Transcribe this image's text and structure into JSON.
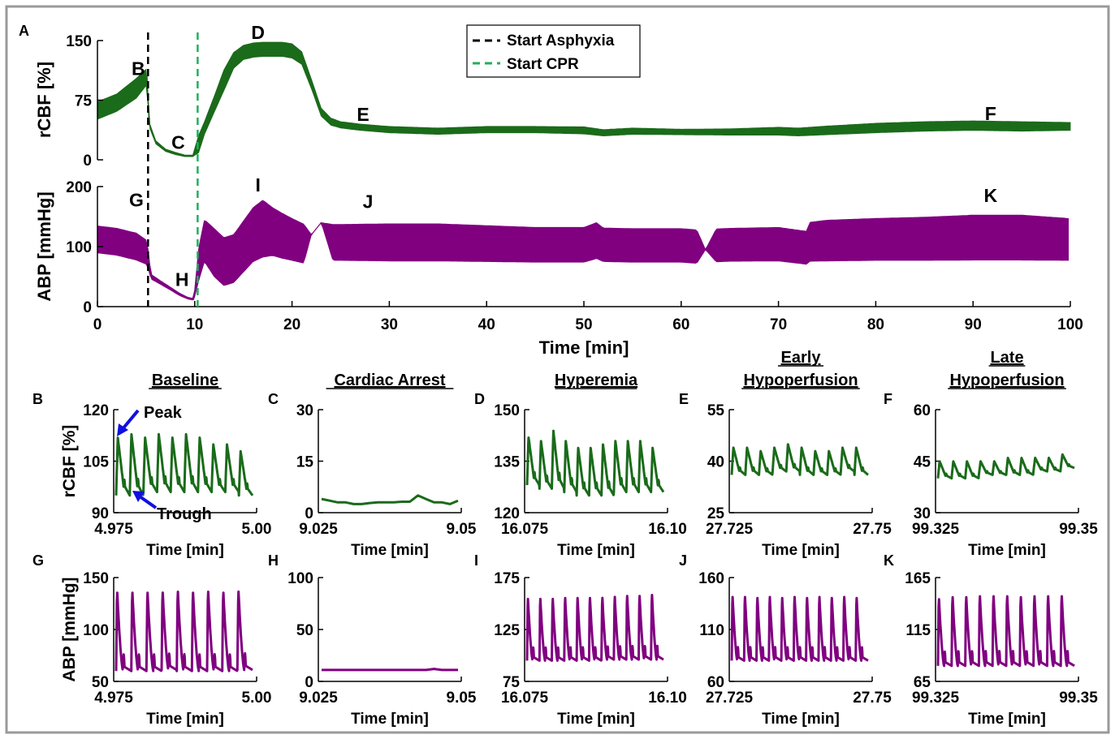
{
  "figure": {
    "panel_letters": [
      "A",
      "B",
      "C",
      "D",
      "E",
      "F",
      "G",
      "H",
      "I",
      "J",
      "K"
    ],
    "colors": {
      "rcbf": "#1a6b1a",
      "abp": "#800080",
      "asphyxia": "#000000",
      "cpr": "#1db15a",
      "arrow": "#1010e0",
      "border": "#9a9a9a"
    }
  },
  "chart_data": [
    {
      "id": "A-rcbf",
      "type": "line",
      "ylabel": "rCBF [%]",
      "yticks": [
        0,
        75,
        150
      ],
      "ylim": [
        0,
        150
      ],
      "xlim": [
        0,
        100
      ],
      "series": [
        {
          "x": [
            0,
            2,
            4,
            5.1,
            5.3,
            6,
            7,
            8,
            9,
            9.8,
            10.4,
            11,
            12,
            13,
            14,
            15,
            16,
            17,
            18,
            19,
            20,
            21,
            22,
            23,
            24,
            25,
            27,
            30,
            35,
            40,
            45,
            50,
            52,
            55,
            60,
            65,
            70,
            72,
            75,
            80,
            85,
            90,
            95,
            100
          ],
          "values": [
            62,
            72,
            90,
            105,
            45,
            22,
            12,
            8,
            5,
            5,
            20,
            40,
            70,
            100,
            125,
            135,
            138,
            139,
            139,
            139,
            137,
            128,
            95,
            60,
            48,
            44,
            41,
            38,
            36,
            38,
            38,
            37,
            34,
            36,
            35,
            35,
            36,
            35,
            37,
            40,
            42,
            43,
            42,
            42
          ],
          "band": [
            22,
            22,
            25,
            20,
            6,
            4,
            3,
            3,
            2,
            2,
            22,
            16,
            20,
            26,
            20,
            18,
            18,
            18,
            18,
            18,
            18,
            16,
            12,
            10,
            9,
            8,
            8,
            8,
            8,
            8,
            8,
            9,
            8,
            8,
            7,
            8,
            10,
            10,
            11,
            12,
            12,
            12,
            12,
            10
          ]
        }
      ],
      "annotations": [
        {
          "text": "B",
          "x": 4.2,
          "y": 115
        },
        {
          "text": "C",
          "x": 8.3,
          "y": 22
        },
        {
          "text": "D",
          "x": 16.5,
          "y": 160
        },
        {
          "text": "E",
          "x": 27.3,
          "y": 57
        },
        {
          "text": "F",
          "x": 91.8,
          "y": 58
        }
      ]
    },
    {
      "id": "A-abp",
      "type": "line",
      "ylabel": "ABP [mmHg]",
      "xlabel": "Time [min]",
      "yticks": [
        0,
        100,
        200
      ],
      "ylim": [
        0,
        200
      ],
      "xlim": [
        0,
        100
      ],
      "xticks": [
        0,
        10,
        20,
        30,
        40,
        50,
        60,
        70,
        80,
        90,
        100
      ],
      "series": [
        {
          "x": [
            0,
            2,
            4,
            5.1,
            5.5,
            6.5,
            7.5,
            8.5,
            9.3,
            9.9,
            10.4,
            11,
            12,
            13,
            14,
            15,
            16,
            17,
            18,
            19,
            20,
            21.2,
            22,
            23,
            24.2,
            25,
            30,
            35,
            40,
            45,
            50,
            51.3,
            52,
            55,
            60,
            61.6,
            62.5,
            63.6,
            65,
            70,
            72.9,
            73.2,
            75,
            80,
            85,
            90,
            95,
            99.8
          ],
          "values": [
            112,
            108,
            100,
            90,
            50,
            40,
            30,
            20,
            14,
            12,
            70,
            110,
            90,
            75,
            80,
            100,
            120,
            130,
            125,
            118,
            112,
            105,
            120,
            140,
            107,
            107,
            107,
            107,
            105,
            103,
            103,
            110,
            103,
            102,
            102,
            100,
            95,
            102,
            103,
            104,
            98,
            108,
            110,
            112,
            113,
            115,
            115,
            112
          ],
          "band": [
            45,
            45,
            45,
            40,
            8,
            6,
            5,
            4,
            3,
            3,
            55,
            70,
            80,
            80,
            80,
            85,
            90,
            95,
            80,
            75,
            70,
            65,
            0,
            0,
            60,
            60,
            62,
            62,
            60,
            58,
            58,
            60,
            56,
            56,
            56,
            56,
            0,
            55,
            55,
            56,
            55,
            65,
            68,
            70,
            72,
            75,
            75,
            70
          ]
        }
      ],
      "annotations": [
        {
          "text": "G",
          "x": 4.0,
          "y": 178
        },
        {
          "text": "H",
          "x": 8.7,
          "y": 45
        },
        {
          "text": "I",
          "x": 16.5,
          "y": 203
        },
        {
          "text": "J",
          "x": 27.8,
          "y": 175
        },
        {
          "text": "K",
          "x": 91.8,
          "y": 185
        }
      ]
    },
    {
      "id": "A-events",
      "type": "line",
      "lines": [
        {
          "name": "Start Asphyxia",
          "x": 5.2,
          "style": "dashed",
          "color": "#000000"
        },
        {
          "name": "Start CPR",
          "x": 10.3,
          "style": "dashed",
          "color": "#1db15a"
        }
      ],
      "legend": "top-center"
    },
    {
      "id": "B",
      "type": "line",
      "title": "Baseline",
      "ylabel": "rCBF [%]",
      "xlabel": "Time [min]",
      "xtick_labels": [
        "4.975",
        "5.00"
      ],
      "yticks": [
        90,
        105,
        120
      ],
      "ylim": [
        90,
        120
      ],
      "beats": 10,
      "peaks": [
        112,
        113,
        112,
        113,
        112,
        113,
        112,
        110,
        110,
        108
      ],
      "troughs": [
        95,
        95,
        96,
        96,
        96,
        96,
        96,
        96,
        96,
        95
      ],
      "shape": "cbf",
      "series_color": "rcbf",
      "annotations": [
        {
          "text": "Peak"
        },
        {
          "text": "Trough"
        }
      ]
    },
    {
      "id": "C",
      "type": "line",
      "title": "Cardiac Arrest",
      "xlabel": "Time [min]",
      "xtick_labels": [
        "9.025",
        "9.05"
      ],
      "yticks": [
        0,
        15,
        30
      ],
      "ylim": [
        0,
        30
      ],
      "flat": [
        4,
        3.5,
        3,
        3,
        2.5,
        2.5,
        2.8,
        3,
        3,
        3,
        3.2,
        3.2,
        5,
        4,
        3,
        3,
        2.5,
        3.5
      ],
      "series_color": "rcbf"
    },
    {
      "id": "D",
      "type": "line",
      "title": "Hyperemia",
      "xlabel": "Time [min]",
      "xtick_labels": [
        "16.075",
        "16.10"
      ],
      "yticks": [
        120,
        135,
        150
      ],
      "ylim": [
        120,
        150
      ],
      "beats": 11,
      "peaks": [
        142,
        141,
        144,
        141,
        139,
        139,
        140,
        141,
        141,
        141,
        139
      ],
      "troughs": [
        128,
        127,
        127,
        126,
        125,
        125,
        125,
        126,
        126,
        126,
        126
      ],
      "shape": "cbf",
      "series_color": "rcbf"
    },
    {
      "id": "E",
      "type": "line",
      "title": "Early Hypoperfusion",
      "xlabel": "Time [min]",
      "xtick_labels": [
        "27.725",
        "27.75"
      ],
      "yticks": [
        25,
        40,
        55
      ],
      "ylim": [
        25,
        55
      ],
      "beats": 10,
      "peaks": [
        44,
        44,
        43,
        44,
        45,
        44,
        43,
        43,
        44,
        44
      ],
      "troughs": [
        36,
        36,
        36,
        37,
        37,
        36,
        36,
        36,
        37,
        36
      ],
      "shape": "cbf",
      "series_color": "rcbf"
    },
    {
      "id": "F",
      "type": "line",
      "title": "Late Hypoperfusion",
      "xlabel": "Time [min]",
      "xtick_labels": [
        "99.325",
        "99.35"
      ],
      "yticks": [
        30,
        45,
        60
      ],
      "ylim": [
        30,
        60
      ],
      "beats": 10,
      "peaks": [
        45,
        45,
        45,
        45,
        45,
        46,
        46,
        46,
        46,
        47
      ],
      "troughs": [
        40,
        40,
        40,
        41,
        41,
        41,
        41,
        42,
        42,
        43
      ],
      "shape": "cbf",
      "series_color": "rcbf"
    },
    {
      "id": "G",
      "type": "line",
      "ylabel": "ABP [mmHg]",
      "xlabel": "Time [min]",
      "xtick_labels": [
        "4.975",
        "5.00"
      ],
      "yticks": [
        50,
        100,
        150
      ],
      "ylim": [
        50,
        150
      ],
      "beats": 9,
      "peaks": [
        140,
        140,
        140,
        140,
        141,
        140,
        141,
        140,
        141
      ],
      "troughs": [
        60,
        60,
        60,
        61,
        60,
        60,
        60,
        60,
        61
      ],
      "shape": "abp",
      "series_color": "abp"
    },
    {
      "id": "H",
      "type": "line",
      "xlabel": "Time [min]",
      "xtick_labels": [
        "9.025",
        "9.05"
      ],
      "yticks": [
        0,
        50,
        100
      ],
      "ylim": [
        0,
        100
      ],
      "flat": [
        11,
        11,
        11,
        11,
        11,
        11,
        11,
        11,
        11,
        11,
        11,
        11,
        11,
        11,
        12,
        11,
        11,
        11
      ],
      "series_color": "abp"
    },
    {
      "id": "I",
      "type": "line",
      "xlabel": "Time [min]",
      "xtick_labels": [
        "16.075",
        "16.10"
      ],
      "yticks": [
        75,
        125,
        175
      ],
      "ylim": [
        75,
        175
      ],
      "beats": 11,
      "peaks": [
        158,
        158,
        158,
        159,
        159,
        159,
        159,
        160,
        161,
        161,
        162
      ],
      "troughs": [
        95,
        95,
        95,
        95,
        95,
        95,
        96,
        96,
        96,
        96,
        96
      ],
      "shape": "abp",
      "series_color": "abp"
    },
    {
      "id": "J",
      "type": "line",
      "xlabel": "Time [min]",
      "xtick_labels": [
        "27.725",
        "27.75"
      ],
      "yticks": [
        60,
        110,
        160
      ],
      "ylim": [
        60,
        160
      ],
      "beats": 11,
      "peaks": [
        145,
        145,
        144,
        145,
        144,
        145,
        144,
        145,
        144,
        145,
        144
      ],
      "troughs": [
        80,
        80,
        80,
        80,
        80,
        80,
        80,
        80,
        80,
        80,
        80
      ],
      "shape": "abp",
      "series_color": "abp"
    },
    {
      "id": "K",
      "type": "line",
      "xlabel": "Time [min]",
      "xtick_labels": [
        "99.325",
        "99.35"
      ],
      "yticks": [
        65,
        115,
        165
      ],
      "ylim": [
        65,
        165
      ],
      "beats": 10,
      "peaks": [
        148,
        150,
        150,
        151,
        151,
        151,
        150,
        151,
        151,
        151
      ],
      "troughs": [
        80,
        80,
        80,
        80,
        80,
        80,
        80,
        80,
        80,
        80
      ],
      "shape": "abp",
      "series_color": "abp"
    }
  ]
}
